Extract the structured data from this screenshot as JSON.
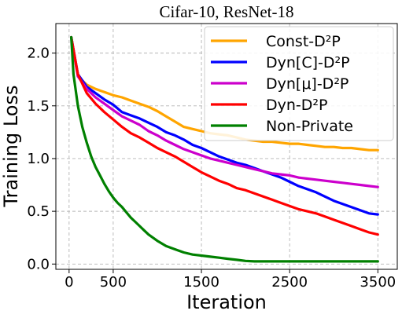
{
  "chart_data": {
    "type": "line",
    "title": "Cifar-10, ResNet-18",
    "xlabel": "Iteration",
    "ylabel": "Training Loss",
    "xlim": [
      -150,
      3720
    ],
    "ylim": [
      -0.05,
      2.28
    ],
    "xticks": [
      0,
      500,
      1500,
      2500,
      3500
    ],
    "xtick_labels": [
      "0",
      "500",
      "1500",
      "2500",
      "3500"
    ],
    "yticks": [
      0.0,
      0.5,
      1.0,
      1.5,
      2.0
    ],
    "ytick_labels": [
      "0.0",
      "0.5",
      "1.0",
      "1.5",
      "2.0"
    ],
    "grid": true,
    "legend_position": "top-right",
    "series": [
      {
        "name": "Const-D²P",
        "color": "#ffa500",
        "x": [
          25,
          100,
          200,
          300,
          400,
          500,
          600,
          700,
          800,
          900,
          1000,
          1100,
          1200,
          1300,
          1400,
          1500,
          1600,
          1700,
          1800,
          1900,
          2000,
          2100,
          2200,
          2300,
          2400,
          2500,
          2600,
          2700,
          2800,
          2900,
          3000,
          3100,
          3200,
          3300,
          3400,
          3500
        ],
        "values": [
          2.15,
          1.78,
          1.7,
          1.66,
          1.63,
          1.6,
          1.58,
          1.55,
          1.52,
          1.49,
          1.45,
          1.4,
          1.35,
          1.3,
          1.28,
          1.26,
          1.24,
          1.23,
          1.22,
          1.2,
          1.18,
          1.17,
          1.16,
          1.16,
          1.15,
          1.14,
          1.14,
          1.13,
          1.12,
          1.11,
          1.11,
          1.1,
          1.1,
          1.09,
          1.08,
          1.08
        ]
      },
      {
        "name": "Dyn[C]-D²P",
        "color": "#0000ff",
        "x": [
          25,
          100,
          200,
          300,
          400,
          500,
          600,
          700,
          800,
          900,
          1000,
          1100,
          1200,
          1300,
          1400,
          1500,
          1600,
          1700,
          1800,
          1900,
          2000,
          2100,
          2200,
          2300,
          2400,
          2500,
          2600,
          2700,
          2800,
          2900,
          3000,
          3100,
          3200,
          3300,
          3400,
          3500
        ],
        "values": [
          2.15,
          1.8,
          1.68,
          1.62,
          1.56,
          1.51,
          1.44,
          1.41,
          1.38,
          1.34,
          1.3,
          1.25,
          1.22,
          1.18,
          1.13,
          1.1,
          1.06,
          1.02,
          0.99,
          0.96,
          0.94,
          0.91,
          0.88,
          0.85,
          0.82,
          0.78,
          0.74,
          0.71,
          0.68,
          0.64,
          0.6,
          0.57,
          0.54,
          0.51,
          0.48,
          0.47
        ]
      },
      {
        "name": "Dyn[μ]-D²P",
        "color": "#cc00cc",
        "x": [
          25,
          100,
          200,
          300,
          400,
          500,
          600,
          700,
          800,
          900,
          1000,
          1100,
          1200,
          1300,
          1400,
          1500,
          1600,
          1700,
          1800,
          1900,
          2000,
          2100,
          2200,
          2300,
          2400,
          2500,
          2600,
          2700,
          2800,
          2900,
          3000,
          3100,
          3200,
          3300,
          3400,
          3500
        ],
        "values": [
          2.15,
          1.78,
          1.66,
          1.58,
          1.52,
          1.46,
          1.4,
          1.36,
          1.32,
          1.26,
          1.22,
          1.17,
          1.13,
          1.09,
          1.06,
          1.03,
          1.0,
          0.98,
          0.96,
          0.94,
          0.92,
          0.9,
          0.88,
          0.86,
          0.85,
          0.84,
          0.82,
          0.81,
          0.8,
          0.79,
          0.78,
          0.77,
          0.76,
          0.75,
          0.74,
          0.73
        ]
      },
      {
        "name": "Dyn-D²P",
        "color": "#ff0000",
        "x": [
          25,
          100,
          200,
          300,
          400,
          500,
          600,
          700,
          800,
          900,
          1000,
          1100,
          1200,
          1300,
          1400,
          1500,
          1600,
          1700,
          1800,
          1900,
          2000,
          2100,
          2200,
          2300,
          2400,
          2500,
          2600,
          2700,
          2800,
          2900,
          3000,
          3100,
          3200,
          3300,
          3400,
          3500
        ],
        "values": [
          2.15,
          1.8,
          1.62,
          1.52,
          1.44,
          1.37,
          1.3,
          1.24,
          1.2,
          1.15,
          1.1,
          1.06,
          1.02,
          0.97,
          0.92,
          0.87,
          0.83,
          0.79,
          0.76,
          0.72,
          0.7,
          0.67,
          0.64,
          0.61,
          0.58,
          0.55,
          0.52,
          0.5,
          0.48,
          0.45,
          0.42,
          0.39,
          0.36,
          0.33,
          0.3,
          0.28
        ]
      },
      {
        "name": "Non-Private",
        "color": "#008000",
        "x": [
          25,
          50,
          100,
          150,
          200,
          250,
          300,
          350,
          400,
          450,
          500,
          550,
          600,
          650,
          700,
          750,
          800,
          850,
          900,
          1000,
          1100,
          1200,
          1300,
          1400,
          1500,
          1600,
          1700,
          1800,
          1900,
          2000,
          2100,
          2200,
          2300,
          2400,
          2500,
          2600,
          2700,
          2800,
          2900,
          3000,
          3100,
          3200,
          3300,
          3400,
          3500
        ],
        "values": [
          2.15,
          1.8,
          1.5,
          1.3,
          1.15,
          1.02,
          0.92,
          0.84,
          0.76,
          0.69,
          0.63,
          0.58,
          0.54,
          0.49,
          0.44,
          0.4,
          0.36,
          0.32,
          0.28,
          0.22,
          0.17,
          0.14,
          0.11,
          0.09,
          0.08,
          0.07,
          0.06,
          0.05,
          0.04,
          0.03,
          0.025,
          0.025,
          0.025,
          0.025,
          0.025,
          0.025,
          0.025,
          0.025,
          0.025,
          0.025,
          0.025,
          0.025,
          0.025,
          0.025,
          0.025
        ]
      }
    ]
  }
}
